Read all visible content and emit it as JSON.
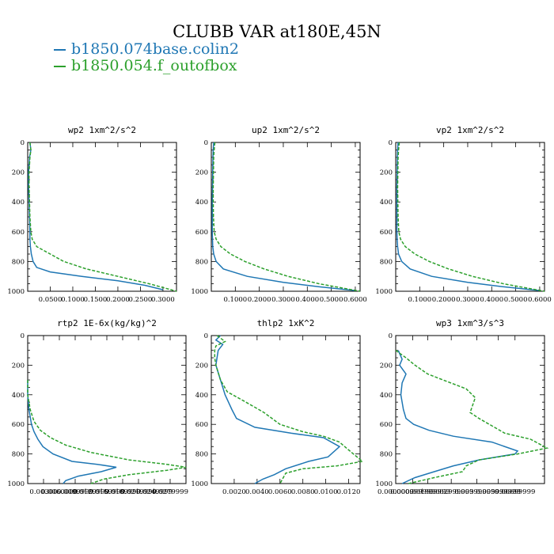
{
  "figure_title": "CLUBB VAR at180E,45N",
  "legend": [
    {
      "label": "b1850.074base.colin2",
      "color": "#1f77b4",
      "dash": "solid"
    },
    {
      "label": "b1850.054.f_outofbox",
      "color": "#2ca02c",
      "dash": "dashed"
    }
  ],
  "chart_data": [
    {
      "type": "line",
      "title": "wp2  1xm^2/s^2",
      "xlim": [
        0.0,
        0.33
      ],
      "ylim": [
        1000,
        0
      ],
      "y_inverted": true,
      "xticks": [
        0.05,
        0.1,
        0.15,
        0.2,
        0.25,
        0.3
      ],
      "xtick_labels": [
        "0.0500",
        "0.1000",
        "0.1500",
        "0.2000",
        "0.2500",
        "0.3000"
      ],
      "yticks": [
        0,
        200,
        400,
        600,
        800,
        1000
      ],
      "series": [
        {
          "x": [
            0.005,
            0.007,
            0.004,
            0.003,
            0.002,
            0.002,
            0.003,
            0.004,
            0.005,
            0.005,
            0.006,
            0.008,
            0.012,
            0.02,
            0.05,
            0.12,
            0.2,
            0.26,
            0.3
          ],
          "y": [
            0,
            50,
            100,
            150,
            200,
            300,
            400,
            500,
            600,
            650,
            700,
            750,
            800,
            840,
            870,
            900,
            930,
            960,
            990
          ]
        },
        {
          "x": [
            0.005,
            0.007,
            0.005,
            0.004,
            0.003,
            0.003,
            0.004,
            0.005,
            0.007,
            0.01,
            0.02,
            0.05,
            0.08,
            0.13,
            0.2,
            0.27,
            0.33
          ],
          "y": [
            0,
            50,
            100,
            150,
            200,
            300,
            400,
            500,
            600,
            650,
            700,
            750,
            800,
            850,
            900,
            950,
            1000
          ]
        }
      ]
    },
    {
      "type": "line",
      "title": "up2  1xm^2/s^2",
      "xlim": [
        0.0,
        0.62
      ],
      "ylim": [
        1000,
        0
      ],
      "y_inverted": true,
      "xticks": [
        0.1,
        0.2,
        0.3,
        0.4,
        0.5,
        0.6
      ],
      "xtick_labels": [
        "0.1000",
        "0.2000",
        "0.3000",
        "0.4000",
        "0.5000",
        "0.6000"
      ],
      "yticks": [
        0,
        200,
        400,
        600,
        800,
        1000
      ],
      "series": [
        {
          "x": [
            0.01,
            0.008,
            0.007,
            0.006,
            0.005,
            0.004,
            0.004,
            0.004,
            0.005,
            0.006,
            0.01,
            0.02,
            0.05,
            0.15,
            0.3,
            0.45,
            0.6
          ],
          "y": [
            0,
            50,
            100,
            200,
            300,
            400,
            500,
            600,
            650,
            700,
            750,
            800,
            850,
            900,
            940,
            970,
            995
          ]
        },
        {
          "x": [
            0.015,
            0.012,
            0.01,
            0.009,
            0.008,
            0.008,
            0.009,
            0.012,
            0.02,
            0.04,
            0.08,
            0.14,
            0.22,
            0.32,
            0.45,
            0.62
          ],
          "y": [
            0,
            50,
            100,
            200,
            300,
            400,
            500,
            600,
            650,
            700,
            750,
            800,
            850,
            900,
            950,
            1000
          ]
        }
      ]
    },
    {
      "type": "line",
      "title": "vp2  1xm^2/s^2",
      "xlim": [
        0.0,
        0.62
      ],
      "ylim": [
        1000,
        0
      ],
      "y_inverted": true,
      "xticks": [
        0.1,
        0.2,
        0.3,
        0.4,
        0.5,
        0.6
      ],
      "xtick_labels": [
        "0.1000",
        "0.2000",
        "0.3000",
        "0.4000",
        "0.5000",
        "0.6000"
      ],
      "yticks": [
        0,
        200,
        400,
        600,
        800,
        1000
      ],
      "series": [
        {
          "x": [
            0.01,
            0.008,
            0.007,
            0.006,
            0.005,
            0.005,
            0.005,
            0.005,
            0.006,
            0.008,
            0.012,
            0.025,
            0.06,
            0.15,
            0.3,
            0.45,
            0.6
          ],
          "y": [
            0,
            50,
            100,
            200,
            300,
            400,
            500,
            600,
            650,
            700,
            750,
            800,
            850,
            900,
            940,
            970,
            995
          ]
        },
        {
          "x": [
            0.015,
            0.012,
            0.01,
            0.009,
            0.008,
            0.009,
            0.01,
            0.013,
            0.02,
            0.04,
            0.08,
            0.14,
            0.22,
            0.32,
            0.45,
            0.62
          ],
          "y": [
            0,
            50,
            100,
            200,
            300,
            400,
            500,
            600,
            650,
            700,
            750,
            800,
            850,
            900,
            950,
            1000
          ]
        }
      ]
    },
    {
      "type": "line",
      "title": "rtp2  1E-6x(kg/kg)^2",
      "xlim": [
        0.0,
        0.125
      ],
      "ylim": [
        1000,
        0
      ],
      "y_inverted": true,
      "xticks": [
        0.0125,
        0.025,
        0.0375,
        0.05,
        0.0625,
        0.075,
        0.0875,
        0.1,
        0.1125
      ],
      "xtick_labels": [
        "0.00300",
        "0.0060000",
        "0.0099999",
        "0.0129999",
        "0.0159999",
        "0.0189999",
        "0.0219999",
        "0.0249999",
        "0.0279999"
      ],
      "yticks": [
        0,
        200,
        400,
        600,
        800,
        1000
      ],
      "series": [
        {
          "x": [
            0.0,
            0.0,
            0.001,
            0.003,
            0.005,
            0.008,
            0.012,
            0.02,
            0.035,
            0.055,
            0.07,
            0.058,
            0.04,
            0.03,
            0.028
          ],
          "y": [
            300,
            400,
            500,
            600,
            650,
            700,
            750,
            800,
            850,
            870,
            890,
            920,
            950,
            980,
            1000
          ]
        },
        {
          "x": [
            0.0,
            0.0,
            0.002,
            0.005,
            0.01,
            0.018,
            0.03,
            0.05,
            0.08,
            0.11,
            0.125,
            0.11,
            0.08,
            0.06,
            0.05
          ],
          "y": [
            300,
            400,
            500,
            580,
            640,
            690,
            740,
            790,
            840,
            870,
            890,
            910,
            940,
            970,
            1000
          ]
        }
      ]
    },
    {
      "type": "line",
      "title": "thlp2  1xK^2",
      "xlim": [
        0.0,
        0.013
      ],
      "ylim": [
        1000,
        0
      ],
      "y_inverted": true,
      "xticks": [
        0.002,
        0.004,
        0.006,
        0.008,
        0.01,
        0.012
      ],
      "xtick_labels": [
        "0.0020",
        "0.0040",
        "0.0060",
        "0.0080",
        "0.0100",
        "0.0120"
      ],
      "yticks": [
        0,
        200,
        400,
        600,
        800,
        1000
      ],
      "series": [
        {
          "x": [
            0.0008,
            0.0004,
            0.001,
            0.0006,
            0.0005,
            0.0004,
            0.0008,
            0.0012,
            0.0018,
            0.0022,
            0.0038,
            0.007,
            0.0098,
            0.0112,
            0.0102,
            0.0085,
            0.0065,
            0.0055,
            0.0045,
            0.0038
          ],
          "y": [
            0,
            30,
            60,
            100,
            150,
            200,
            300,
            400,
            500,
            560,
            620,
            660,
            690,
            750,
            820,
            850,
            900,
            940,
            970,
            1000
          ]
        },
        {
          "x": [
            0.0005,
            0.0012,
            0.0004,
            0.0003,
            0.0003,
            0.0004,
            0.0008,
            0.0014,
            0.0028,
            0.0046,
            0.006,
            0.008,
            0.0098,
            0.0112,
            0.0118,
            0.0132,
            0.011,
            0.008,
            0.0065,
            0.006
          ],
          "y": [
            0,
            40,
            70,
            100,
            150,
            200,
            300,
            380,
            440,
            520,
            600,
            650,
            680,
            720,
            760,
            850,
            880,
            900,
            930,
            1000
          ]
        }
      ]
    },
    {
      "type": "line",
      "title": "wp3  1xm^3/s^3",
      "xlim": [
        0.0,
        0.0116
      ],
      "ylim": [
        1000,
        0
      ],
      "y_inverted": true,
      "xticks": [
        0.0,
        0.00133,
        0.0025,
        0.00433,
        0.00633,
        0.008,
        0.0093
      ],
      "xtick_labels": [
        "0.0000000",
        "0.000999999",
        "0.001999999",
        "0.002999999",
        "0.003999999",
        "0.005999999",
        "0.00699999"
      ],
      "yticks": [
        0,
        200,
        400,
        600,
        800,
        1000
      ],
      "series": [
        {
          "x": [
            0.0002,
            0.0005,
            0.0003,
            0.0008,
            0.0005,
            0.0004,
            0.0006,
            0.0008,
            0.0014,
            0.0026,
            0.0045,
            0.0075,
            0.0095,
            0.0093,
            0.0065,
            0.0045,
            0.003,
            0.0015,
            0.0005
          ],
          "y": [
            100,
            160,
            200,
            260,
            320,
            400,
            500,
            560,
            600,
            640,
            680,
            720,
            780,
            800,
            840,
            880,
            920,
            960,
            1000
          ]
        },
        {
          "x": [
            0.0,
            0.0008,
            0.0015,
            0.0025,
            0.004,
            0.0055,
            0.0062,
            0.0058,
            0.0065,
            0.0085,
            0.0105,
            0.0118,
            0.0095,
            0.0065,
            0.0055,
            0.0052,
            0.003,
            0.001
          ],
          "y": [
            100,
            150,
            200,
            260,
            310,
            360,
            420,
            520,
            560,
            660,
            700,
            760,
            800,
            840,
            880,
            920,
            960,
            1000
          ]
        }
      ]
    }
  ]
}
